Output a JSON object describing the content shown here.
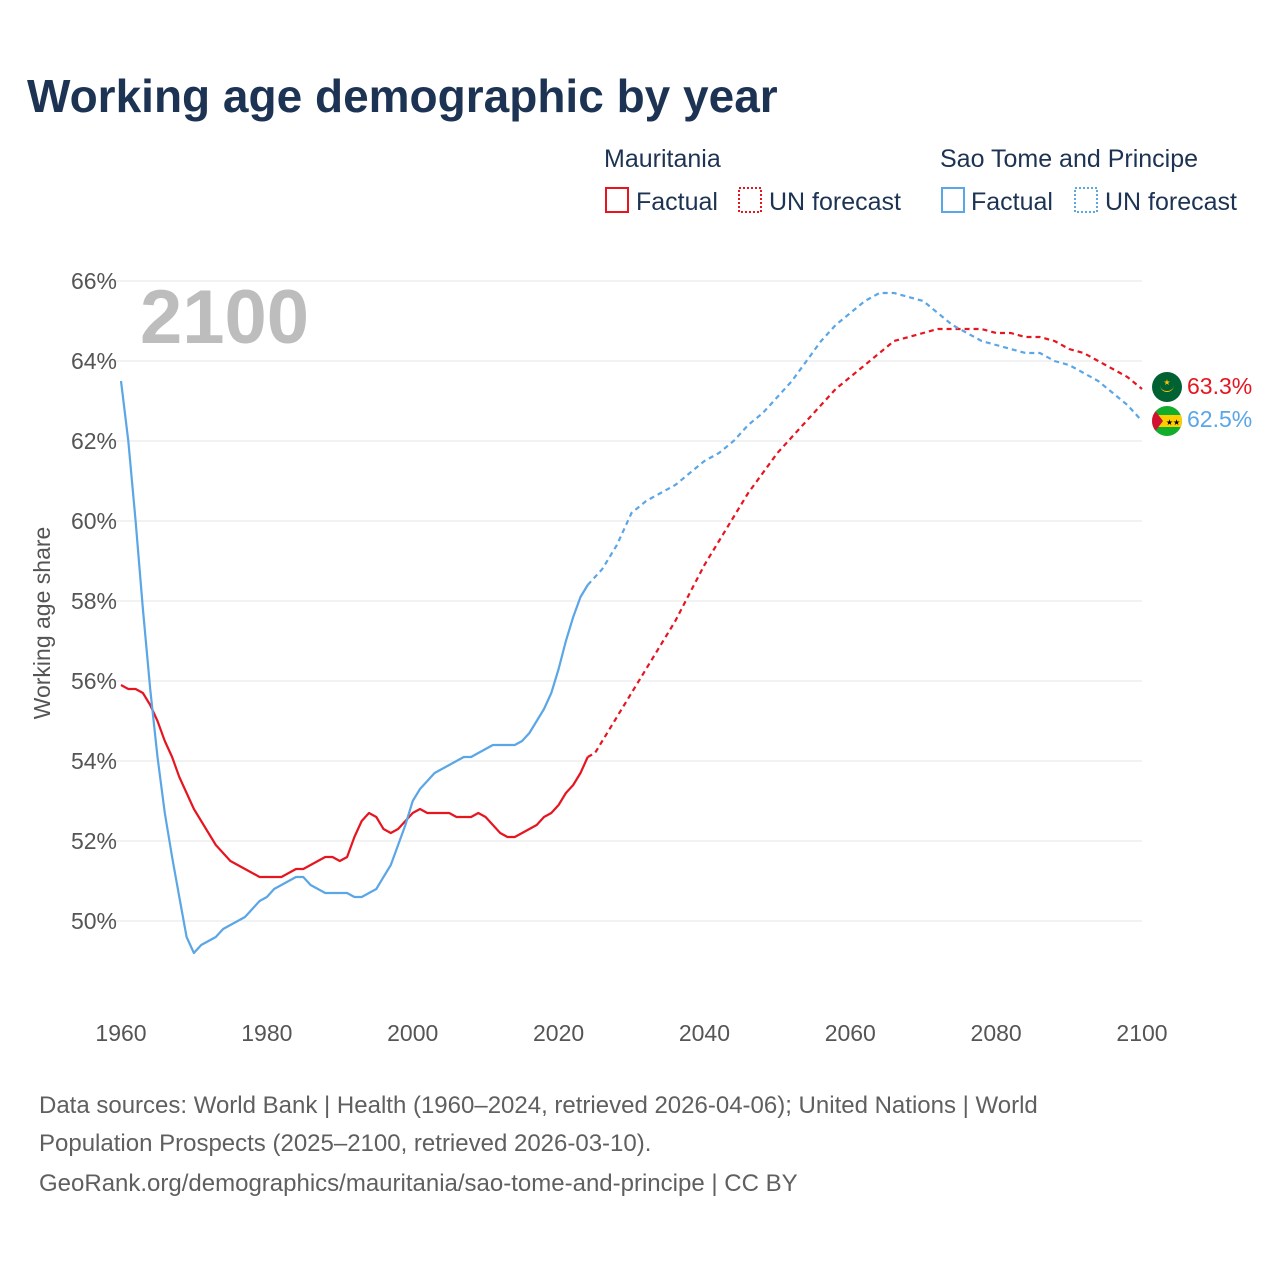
{
  "title": "Working age demographic by year",
  "current_year": "2100",
  "legend": {
    "groups": [
      {
        "name": "Mauritania",
        "factual": "Factual",
        "forecast": "UN forecast",
        "color": "#e6151f"
      },
      {
        "name": "Sao Tome and Principe",
        "factual": "Factual",
        "forecast": "UN forecast",
        "color": "#5aa6e6"
      }
    ]
  },
  "end_labels": {
    "mauritania": "63.3%",
    "sao_tome": "62.5%"
  },
  "flags": {
    "mauritania": "Mauritania flag",
    "sao_tome": "Sao Tome and Principe flag"
  },
  "source": {
    "line1": "Data sources: World Bank | Health (1960–2024, retrieved 2026-04-06); United Nations | World",
    "line2": "Population Prospects (2025–2100, retrieved 2026-03-10).",
    "line3": "GeoRank.org/demographics/mauritania/sao-tome-and-principe | CC BY"
  },
  "chart_data": {
    "type": "line",
    "title": "Working age demographic by year",
    "xlabel": "",
    "ylabel": "Working age share",
    "xlim": [
      1960,
      2100
    ],
    "ylim": [
      48,
      67
    ],
    "x_ticks": [
      1960,
      1980,
      2000,
      2020,
      2040,
      2060,
      2080,
      2100
    ],
    "y_ticks": [
      50,
      52,
      54,
      56,
      58,
      60,
      62,
      64,
      66
    ],
    "y_tick_labels": [
      "50%",
      "52%",
      "54%",
      "56%",
      "58%",
      "60%",
      "62%",
      "64%",
      "66%"
    ],
    "grid": true,
    "factual_until": 2024,
    "series": [
      {
        "name": "Mauritania",
        "color": "#e6151f",
        "points": [
          [
            1960,
            55.9
          ],
          [
            1961,
            55.8
          ],
          [
            1962,
            55.8
          ],
          [
            1963,
            55.7
          ],
          [
            1964,
            55.4
          ],
          [
            1965,
            55.0
          ],
          [
            1966,
            54.5
          ],
          [
            1967,
            54.1
          ],
          [
            1968,
            53.6
          ],
          [
            1969,
            53.2
          ],
          [
            1970,
            52.8
          ],
          [
            1971,
            52.5
          ],
          [
            1972,
            52.2
          ],
          [
            1973,
            51.9
          ],
          [
            1974,
            51.7
          ],
          [
            1975,
            51.5
          ],
          [
            1976,
            51.4
          ],
          [
            1977,
            51.3
          ],
          [
            1978,
            51.2
          ],
          [
            1979,
            51.1
          ],
          [
            1980,
            51.1
          ],
          [
            1981,
            51.1
          ],
          [
            1982,
            51.1
          ],
          [
            1983,
            51.2
          ],
          [
            1984,
            51.3
          ],
          [
            1985,
            51.3
          ],
          [
            1986,
            51.4
          ],
          [
            1987,
            51.5
          ],
          [
            1988,
            51.6
          ],
          [
            1989,
            51.6
          ],
          [
            1990,
            51.5
          ],
          [
            1991,
            51.6
          ],
          [
            1992,
            52.1
          ],
          [
            1993,
            52.5
          ],
          [
            1994,
            52.7
          ],
          [
            1995,
            52.6
          ],
          [
            1996,
            52.3
          ],
          [
            1997,
            52.2
          ],
          [
            1998,
            52.3
          ],
          [
            1999,
            52.5
          ],
          [
            2000,
            52.7
          ],
          [
            2001,
            52.8
          ],
          [
            2002,
            52.7
          ],
          [
            2003,
            52.7
          ],
          [
            2004,
            52.7
          ],
          [
            2005,
            52.7
          ],
          [
            2006,
            52.6
          ],
          [
            2007,
            52.6
          ],
          [
            2008,
            52.6
          ],
          [
            2009,
            52.7
          ],
          [
            2010,
            52.6
          ],
          [
            2011,
            52.4
          ],
          [
            2012,
            52.2
          ],
          [
            2013,
            52.1
          ],
          [
            2014,
            52.1
          ],
          [
            2015,
            52.2
          ],
          [
            2016,
            52.3
          ],
          [
            2017,
            52.4
          ],
          [
            2018,
            52.6
          ],
          [
            2019,
            52.7
          ],
          [
            2020,
            52.9
          ],
          [
            2021,
            53.2
          ],
          [
            2022,
            53.4
          ],
          [
            2023,
            53.7
          ],
          [
            2024,
            54.1
          ],
          [
            2025,
            54.2
          ],
          [
            2026,
            54.5
          ],
          [
            2028,
            55.1
          ],
          [
            2030,
            55.7
          ],
          [
            2032,
            56.3
          ],
          [
            2034,
            56.9
          ],
          [
            2036,
            57.5
          ],
          [
            2038,
            58.2
          ],
          [
            2040,
            58.9
          ],
          [
            2042,
            59.5
          ],
          [
            2044,
            60.1
          ],
          [
            2046,
            60.7
          ],
          [
            2048,
            61.2
          ],
          [
            2050,
            61.7
          ],
          [
            2052,
            62.1
          ],
          [
            2054,
            62.5
          ],
          [
            2056,
            62.9
          ],
          [
            2058,
            63.3
          ],
          [
            2060,
            63.6
          ],
          [
            2062,
            63.9
          ],
          [
            2064,
            64.2
          ],
          [
            2066,
            64.5
          ],
          [
            2068,
            64.6
          ],
          [
            2070,
            64.7
          ],
          [
            2072,
            64.8
          ],
          [
            2074,
            64.8
          ],
          [
            2076,
            64.8
          ],
          [
            2078,
            64.8
          ],
          [
            2080,
            64.7
          ],
          [
            2082,
            64.7
          ],
          [
            2084,
            64.6
          ],
          [
            2086,
            64.6
          ],
          [
            2088,
            64.5
          ],
          [
            2090,
            64.3
          ],
          [
            2092,
            64.2
          ],
          [
            2094,
            64.0
          ],
          [
            2096,
            63.8
          ],
          [
            2098,
            63.6
          ],
          [
            2100,
            63.3
          ]
        ]
      },
      {
        "name": "Sao Tome and Principe",
        "color": "#5aa6e6",
        "points": [
          [
            1960,
            63.5
          ],
          [
            1961,
            62.0
          ],
          [
            1962,
            60.0
          ],
          [
            1963,
            57.8
          ],
          [
            1964,
            55.8
          ],
          [
            1965,
            54.1
          ],
          [
            1966,
            52.7
          ],
          [
            1967,
            51.6
          ],
          [
            1968,
            50.6
          ],
          [
            1969,
            49.6
          ],
          [
            1970,
            49.2
          ],
          [
            1971,
            49.4
          ],
          [
            1972,
            49.5
          ],
          [
            1973,
            49.6
          ],
          [
            1974,
            49.8
          ],
          [
            1975,
            49.9
          ],
          [
            1976,
            50.0
          ],
          [
            1977,
            50.1
          ],
          [
            1978,
            50.3
          ],
          [
            1979,
            50.5
          ],
          [
            1980,
            50.6
          ],
          [
            1981,
            50.8
          ],
          [
            1982,
            50.9
          ],
          [
            1983,
            51.0
          ],
          [
            1984,
            51.1
          ],
          [
            1985,
            51.1
          ],
          [
            1986,
            50.9
          ],
          [
            1987,
            50.8
          ],
          [
            1988,
            50.7
          ],
          [
            1989,
            50.7
          ],
          [
            1990,
            50.7
          ],
          [
            1991,
            50.7
          ],
          [
            1992,
            50.6
          ],
          [
            1993,
            50.6
          ],
          [
            1994,
            50.7
          ],
          [
            1995,
            50.8
          ],
          [
            1996,
            51.1
          ],
          [
            1997,
            51.4
          ],
          [
            1998,
            51.9
          ],
          [
            1999,
            52.4
          ],
          [
            2000,
            53.0
          ],
          [
            2001,
            53.3
          ],
          [
            2002,
            53.5
          ],
          [
            2003,
            53.7
          ],
          [
            2004,
            53.8
          ],
          [
            2005,
            53.9
          ],
          [
            2006,
            54.0
          ],
          [
            2007,
            54.1
          ],
          [
            2008,
            54.1
          ],
          [
            2009,
            54.2
          ],
          [
            2010,
            54.3
          ],
          [
            2011,
            54.4
          ],
          [
            2012,
            54.4
          ],
          [
            2013,
            54.4
          ],
          [
            2014,
            54.4
          ],
          [
            2015,
            54.5
          ],
          [
            2016,
            54.7
          ],
          [
            2017,
            55.0
          ],
          [
            2018,
            55.3
          ],
          [
            2019,
            55.7
          ],
          [
            2020,
            56.3
          ],
          [
            2021,
            57.0
          ],
          [
            2022,
            57.6
          ],
          [
            2023,
            58.1
          ],
          [
            2024,
            58.4
          ],
          [
            2025,
            58.6
          ],
          [
            2026,
            58.8
          ],
          [
            2028,
            59.4
          ],
          [
            2030,
            60.2
          ],
          [
            2032,
            60.5
          ],
          [
            2034,
            60.7
          ],
          [
            2036,
            60.9
          ],
          [
            2038,
            61.2
          ],
          [
            2040,
            61.5
          ],
          [
            2042,
            61.7
          ],
          [
            2044,
            62.0
          ],
          [
            2046,
            62.4
          ],
          [
            2048,
            62.7
          ],
          [
            2050,
            63.1
          ],
          [
            2052,
            63.5
          ],
          [
            2054,
            64.0
          ],
          [
            2056,
            64.5
          ],
          [
            2058,
            64.9
          ],
          [
            2060,
            65.2
          ],
          [
            2062,
            65.5
          ],
          [
            2064,
            65.7
          ],
          [
            2066,
            65.7
          ],
          [
            2068,
            65.6
          ],
          [
            2070,
            65.5
          ],
          [
            2072,
            65.2
          ],
          [
            2074,
            64.9
          ],
          [
            2076,
            64.7
          ],
          [
            2078,
            64.5
          ],
          [
            2080,
            64.4
          ],
          [
            2082,
            64.3
          ],
          [
            2084,
            64.2
          ],
          [
            2086,
            64.2
          ],
          [
            2088,
            64.0
          ],
          [
            2090,
            63.9
          ],
          [
            2092,
            63.7
          ],
          [
            2094,
            63.5
          ],
          [
            2096,
            63.2
          ],
          [
            2098,
            62.9
          ],
          [
            2100,
            62.5
          ]
        ]
      }
    ]
  }
}
